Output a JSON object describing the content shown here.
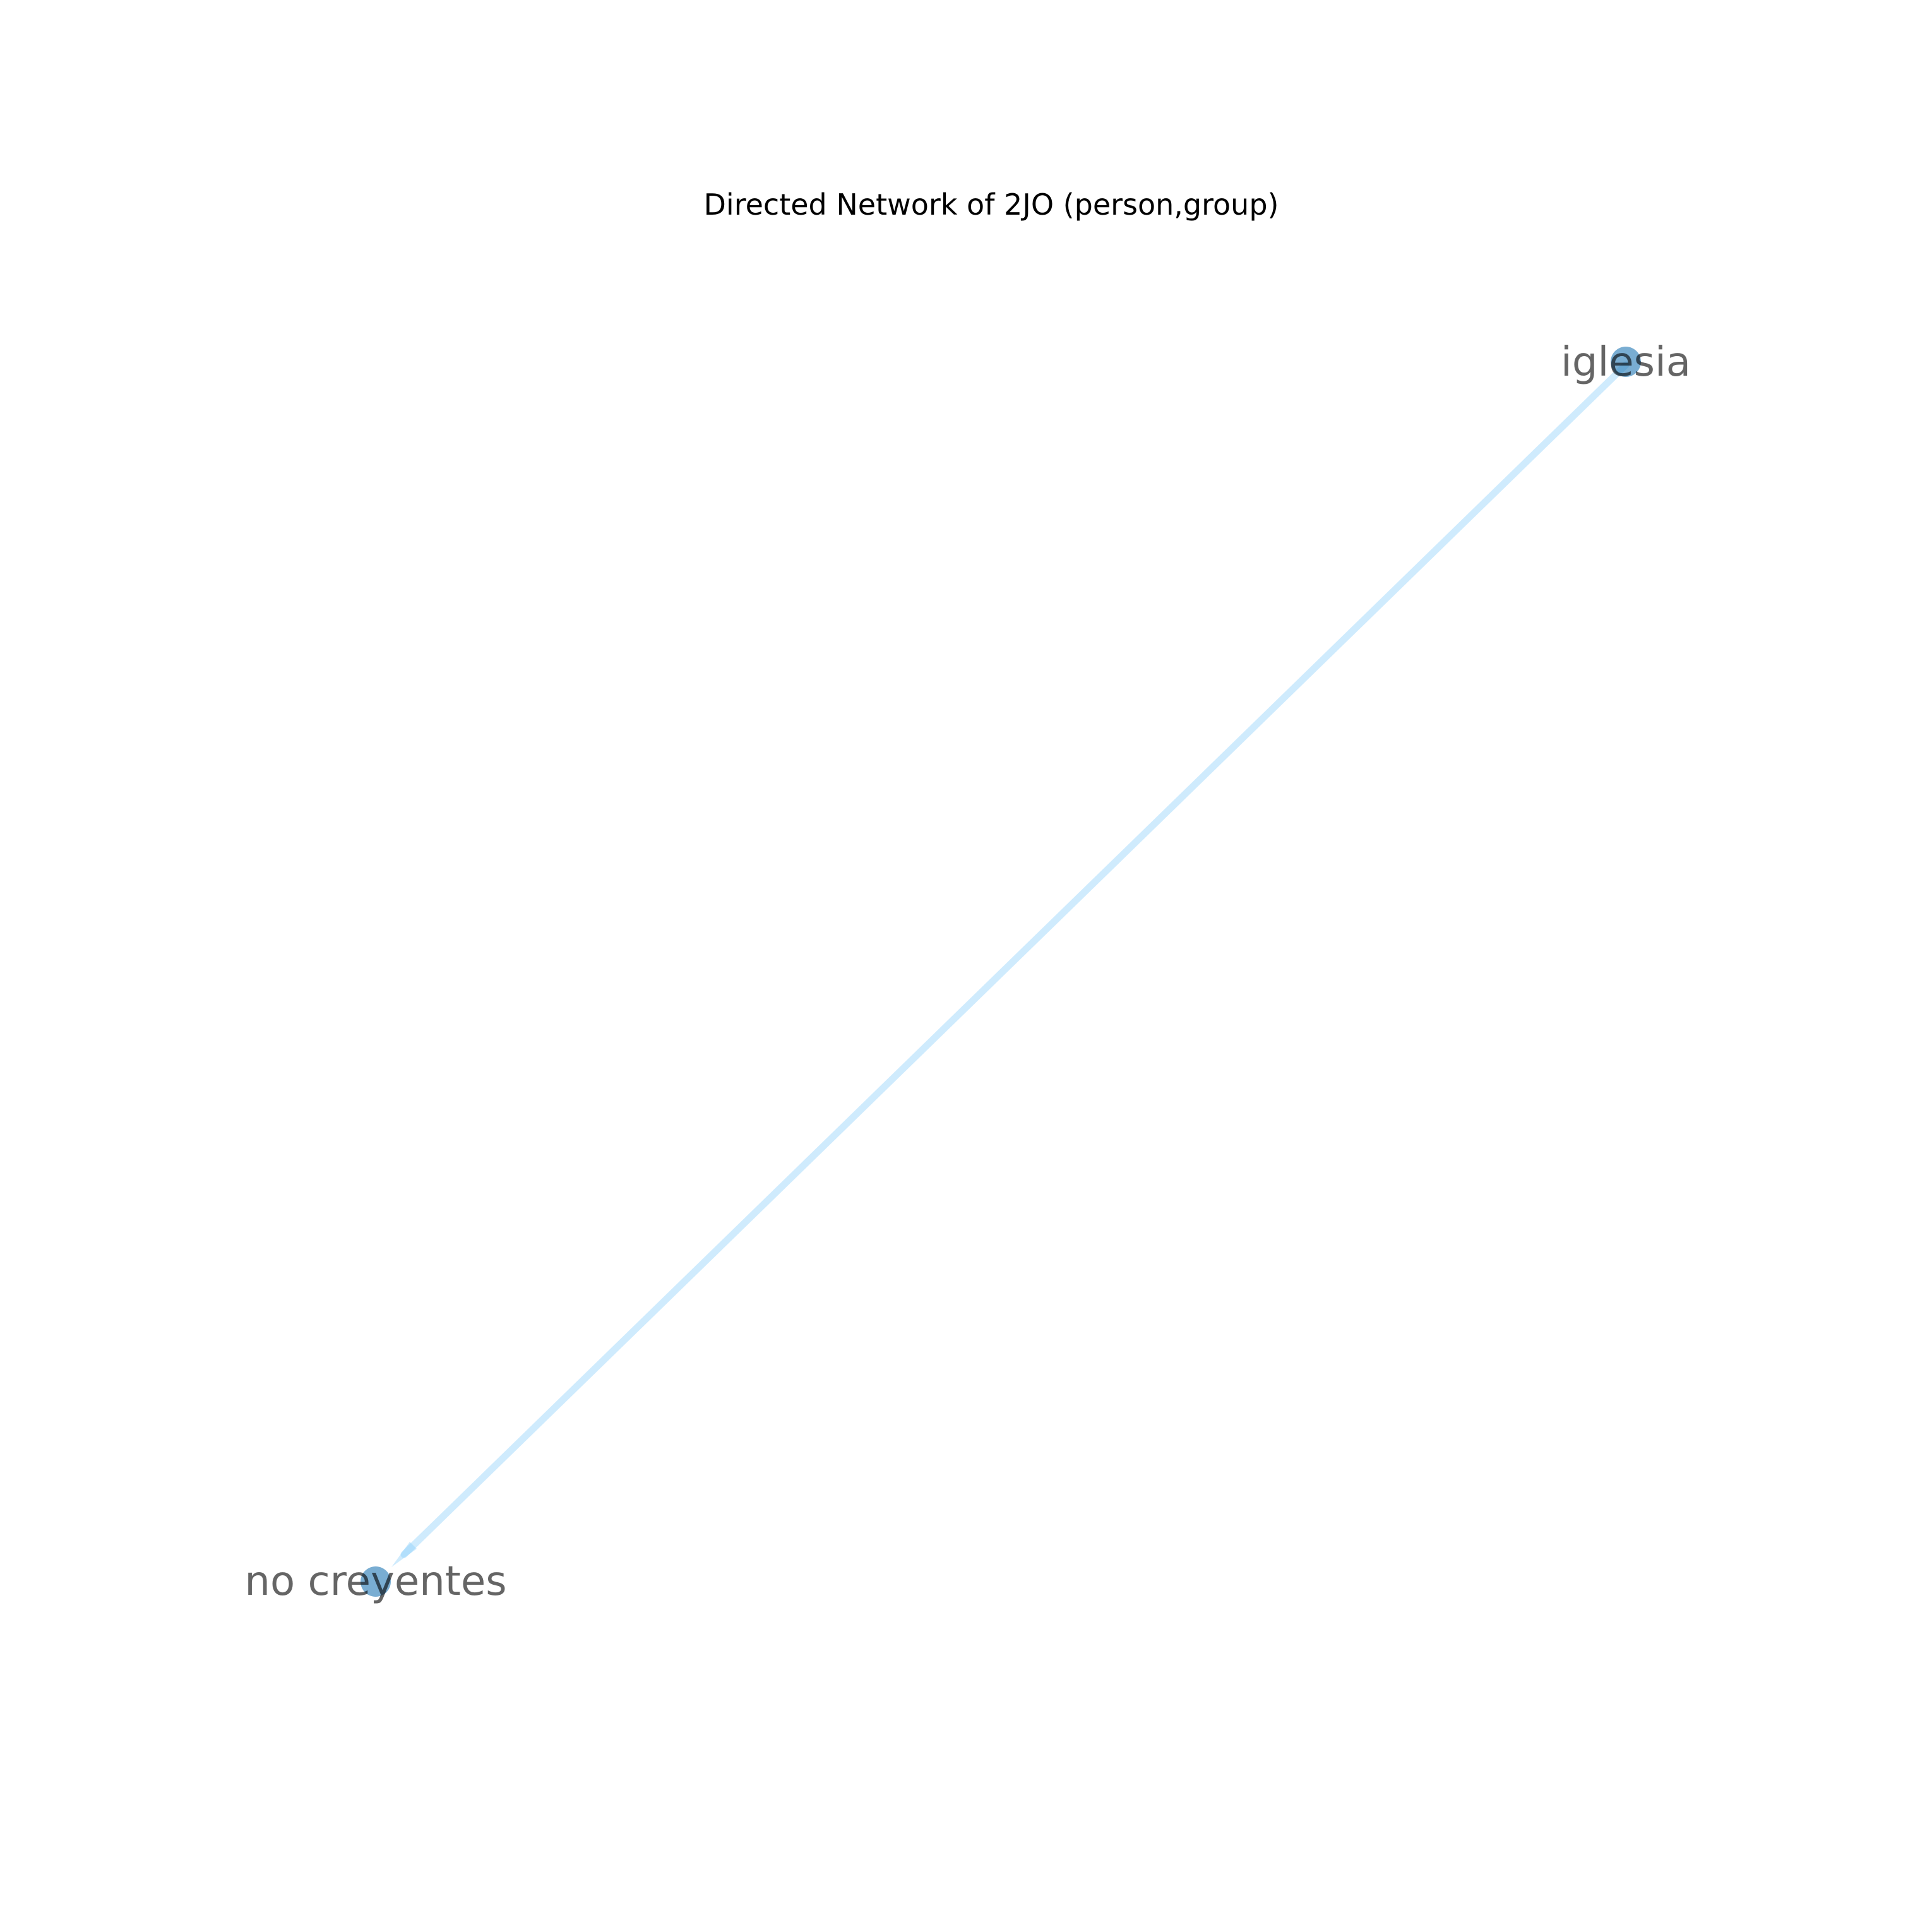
{
  "title": "Directed Network of 2JO (person,group)",
  "colors": {
    "node_fill": "#1f77b4",
    "edge": "#87cefa",
    "label": "#000000",
    "background": "#ffffff"
  },
  "nodes": [
    {
      "id": "iglesia",
      "label": "iglesia"
    },
    {
      "id": "no_creyentes",
      "label": "no creyentes"
    }
  ],
  "edges": [
    {
      "source": "iglesia",
      "target": "no_creyentes",
      "directed": true
    }
  ]
}
